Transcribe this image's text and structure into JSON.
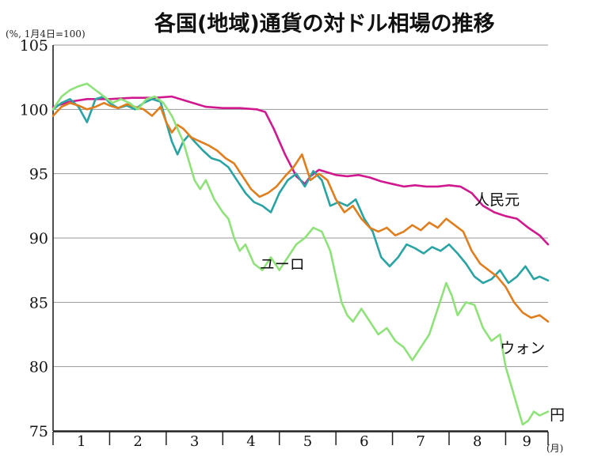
{
  "chart_data": {
    "type": "line",
    "title": "各国(地域)通貨の対ドル相場の推移",
    "y_unit_label": "(%, 1月4日=100)",
    "x_unit_label": "(月)",
    "ylim": [
      75,
      105
    ],
    "yticks": [
      75,
      80,
      85,
      90,
      95,
      100,
      105
    ],
    "categories": [
      "1",
      "2",
      "3",
      "4",
      "5",
      "6",
      "7",
      "8",
      "9"
    ],
    "x_range": [
      0,
      8.75
    ],
    "grid": true,
    "series": [
      {
        "name": "人民元",
        "color": "#d0198f",
        "x": [
          0,
          0.3,
          0.6,
          1.0,
          1.4,
          1.8,
          2.1,
          2.4,
          2.7,
          3.0,
          3.3,
          3.6,
          3.75,
          3.9,
          4.1,
          4.3,
          4.45,
          4.55,
          4.7,
          4.85,
          5.0,
          5.2,
          5.4,
          5.6,
          5.8,
          6.0,
          6.2,
          6.4,
          6.6,
          6.8,
          7.0,
          7.2,
          7.4,
          7.6,
          7.8,
          8.0,
          8.2,
          8.4,
          8.6,
          8.75
        ],
        "y": [
          100.2,
          100.6,
          100.8,
          100.8,
          100.9,
          100.9,
          101.0,
          100.6,
          100.2,
          100.1,
          100.1,
          100.0,
          99.8,
          98.5,
          96.5,
          94.8,
          94.2,
          94.8,
          95.3,
          95.1,
          94.9,
          94.8,
          94.9,
          94.7,
          94.4,
          94.2,
          94.0,
          94.1,
          94.0,
          94.0,
          94.1,
          94.0,
          93.5,
          92.5,
          92.0,
          91.7,
          91.5,
          90.8,
          90.2,
          89.5
        ]
      },
      {
        "name": "ユーロ",
        "color": "#2aa3a3",
        "x": [
          0,
          0.15,
          0.3,
          0.45,
          0.6,
          0.75,
          0.9,
          1.0,
          1.15,
          1.3,
          1.45,
          1.6,
          1.75,
          1.9,
          2.0,
          2.1,
          2.2,
          2.3,
          2.4,
          2.5,
          2.65,
          2.8,
          2.95,
          3.1,
          3.25,
          3.4,
          3.55,
          3.7,
          3.85,
          4.0,
          4.15,
          4.3,
          4.45,
          4.6,
          4.75,
          4.9,
          5.05,
          5.2,
          5.35,
          5.5,
          5.65,
          5.8,
          5.95,
          6.1,
          6.25,
          6.4,
          6.55,
          6.7,
          6.85,
          7.0,
          7.15,
          7.3,
          7.45,
          7.6,
          7.75,
          7.9,
          8.05,
          8.2,
          8.35,
          8.5,
          8.6,
          8.75
        ],
        "y": [
          100.0,
          100.5,
          100.8,
          100.2,
          99.0,
          100.8,
          101.0,
          100.5,
          100.1,
          100.3,
          100.0,
          100.5,
          100.8,
          100.6,
          99.0,
          97.5,
          96.5,
          97.5,
          98.0,
          97.5,
          96.8,
          96.2,
          96.0,
          95.5,
          94.5,
          93.5,
          92.8,
          92.5,
          92.0,
          93.5,
          94.5,
          95.0,
          94.0,
          95.2,
          94.5,
          92.5,
          92.8,
          92.5,
          93.0,
          91.5,
          90.5,
          88.5,
          87.8,
          88.5,
          89.5,
          89.2,
          88.8,
          89.3,
          89.0,
          89.5,
          88.8,
          88.0,
          87.0,
          86.5,
          86.8,
          87.5,
          86.5,
          87.0,
          87.8,
          86.8,
          87.0,
          86.7
        ]
      },
      {
        "name": "ウォン",
        "color": "#e07e1e",
        "x": [
          0,
          0.15,
          0.3,
          0.45,
          0.6,
          0.75,
          0.9,
          1.0,
          1.15,
          1.3,
          1.45,
          1.6,
          1.75,
          1.9,
          2.0,
          2.1,
          2.2,
          2.3,
          2.45,
          2.6,
          2.75,
          2.9,
          3.05,
          3.2,
          3.35,
          3.5,
          3.65,
          3.8,
          3.95,
          4.1,
          4.25,
          4.4,
          4.55,
          4.7,
          4.85,
          5.0,
          5.15,
          5.3,
          5.45,
          5.6,
          5.75,
          5.9,
          6.05,
          6.2,
          6.35,
          6.5,
          6.65,
          6.8,
          6.95,
          7.1,
          7.25,
          7.4,
          7.55,
          7.7,
          7.85,
          8.0,
          8.15,
          8.3,
          8.45,
          8.6,
          8.75
        ],
        "y": [
          99.5,
          100.2,
          100.5,
          100.3,
          100.0,
          100.2,
          100.5,
          100.3,
          100.1,
          100.4,
          100.2,
          100.0,
          99.5,
          100.2,
          99.0,
          98.2,
          98.8,
          98.5,
          97.8,
          97.5,
          97.2,
          96.8,
          96.2,
          95.8,
          94.8,
          93.8,
          93.2,
          93.5,
          94.0,
          94.8,
          95.5,
          96.5,
          94.5,
          95.0,
          94.5,
          93.0,
          92.0,
          92.5,
          91.5,
          90.8,
          90.5,
          90.8,
          90.2,
          90.5,
          91.0,
          90.6,
          91.2,
          90.8,
          91.5,
          91.0,
          90.5,
          89.0,
          88.0,
          87.5,
          87.0,
          86.2,
          85.0,
          84.2,
          83.8,
          84.0,
          83.5
        ]
      },
      {
        "name": "円",
        "color": "#8fe27a",
        "x": [
          0,
          0.15,
          0.3,
          0.45,
          0.6,
          0.75,
          0.9,
          1.05,
          1.2,
          1.35,
          1.5,
          1.65,
          1.8,
          1.95,
          2.1,
          2.2,
          2.3,
          2.4,
          2.5,
          2.6,
          2.7,
          2.85,
          3.0,
          3.1,
          3.2,
          3.3,
          3.4,
          3.55,
          3.7,
          3.85,
          4.0,
          4.15,
          4.3,
          4.45,
          4.6,
          4.75,
          4.9,
          5.0,
          5.1,
          5.2,
          5.3,
          5.45,
          5.6,
          5.75,
          5.9,
          6.05,
          6.2,
          6.35,
          6.5,
          6.65,
          6.8,
          6.95,
          7.05,
          7.15,
          7.3,
          7.45,
          7.6,
          7.75,
          7.9,
          8.0,
          8.1,
          8.2,
          8.3,
          8.4,
          8.5,
          8.6,
          8.75
        ],
        "y": [
          100.0,
          101.0,
          101.5,
          101.8,
          102.0,
          101.5,
          101.0,
          100.5,
          100.8,
          100.5,
          100.0,
          100.8,
          101.0,
          100.5,
          99.5,
          98.5,
          97.5,
          96.0,
          94.5,
          93.8,
          94.5,
          93.0,
          92.0,
          91.5,
          90.0,
          89.0,
          89.5,
          88.0,
          87.5,
          88.5,
          87.5,
          88.5,
          89.5,
          90.0,
          90.8,
          90.5,
          89.0,
          87.0,
          85.0,
          84.0,
          83.5,
          84.5,
          83.5,
          82.5,
          83.0,
          82.0,
          81.5,
          80.5,
          81.5,
          82.5,
          84.5,
          86.5,
          85.5,
          84.0,
          85.0,
          84.8,
          83.0,
          82.0,
          82.5,
          80.0,
          78.5,
          77.0,
          75.5,
          75.8,
          76.5,
          76.2,
          76.5
        ]
      }
    ],
    "series_labels": [
      {
        "series": "人民元",
        "text": "人民元",
        "anchor_x": 7.45,
        "anchor_y": 93.0
      },
      {
        "series": "ユーロ",
        "text": "ユーロ",
        "anchor_x": 3.65,
        "anchor_y": 88.0
      },
      {
        "series": "ウォン",
        "text": "ウォン",
        "anchor_x": 7.9,
        "anchor_y": 81.5
      },
      {
        "series": "円",
        "text": "円",
        "anchor_x": 8.78,
        "anchor_y": 76.3
      }
    ]
  }
}
